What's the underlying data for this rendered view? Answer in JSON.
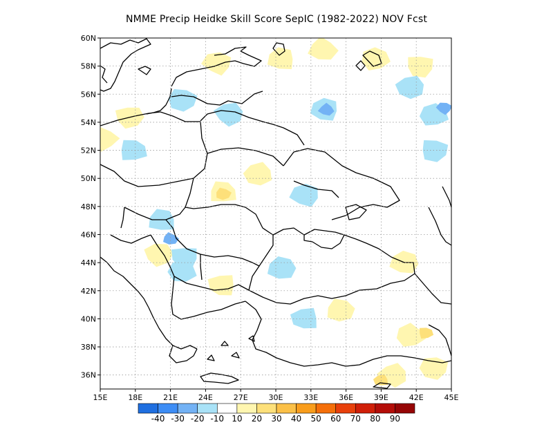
{
  "title": "NMME Precip Heidke Skill Score SepIC (1982-2022) NOV Fcst",
  "map": {
    "lat_labels": [
      "60N",
      "58N",
      "56N",
      "54N",
      "52N",
      "50N",
      "48N",
      "46N",
      "44N",
      "42N",
      "40N",
      "38N",
      "36N"
    ],
    "lat_values": [
      60,
      58,
      56,
      54,
      52,
      50,
      48,
      46,
      44,
      42,
      40,
      38,
      36
    ],
    "lon_labels": [
      "15E",
      "18E",
      "21E",
      "24E",
      "27E",
      "30E",
      "33E",
      "36E",
      "39E",
      "42E",
      "45E"
    ],
    "lon_values": [
      15,
      18,
      21,
      24,
      27,
      30,
      33,
      36,
      39,
      42,
      45
    ],
    "lon_range": [
      15,
      45
    ],
    "lat_range": [
      35,
      60
    ],
    "grid": "dotted"
  },
  "colorbar": {
    "labels": [
      "-40",
      "-30",
      "-20",
      "-10",
      "10",
      "20",
      "30",
      "40",
      "50",
      "60",
      "70",
      "80",
      "90"
    ],
    "colors": [
      "#1f6fe0",
      "#3d8df5",
      "#73b2f5",
      "#a9e2f7",
      "#ffffff",
      "#fff6b0",
      "#fde07a",
      "#fbc047",
      "#f99d1c",
      "#f56f0a",
      "#e8400b",
      "#d01f08",
      "#b40d08",
      "#960505"
    ]
  },
  "palette": {
    "blue_dark": "#1f6fe0",
    "blue": "#3d8df5",
    "blue_mid": "#73b2f5",
    "blue_light": "#a9e2f7",
    "yellow_light": "#fff6b0",
    "yellow": "#fde07a",
    "orange_light": "#fbc047"
  },
  "anomalies": [
    {
      "lon": 30.5,
      "lat": 58.5,
      "level": "yellow_light"
    },
    {
      "lon": 34.0,
      "lat": 59.2,
      "level": "yellow_light"
    },
    {
      "lon": 38.5,
      "lat": 58.5,
      "level": "yellow_light"
    },
    {
      "lon": 42.3,
      "lat": 58.0,
      "level": "yellow_light"
    },
    {
      "lon": 25.0,
      "lat": 58.2,
      "level": "yellow_light"
    },
    {
      "lon": 28.5,
      "lat": 50.3,
      "level": "yellow_light"
    },
    {
      "lon": 25.5,
      "lat": 49.0,
      "level": "yellow_light"
    },
    {
      "lon": 25.5,
      "lat": 48.9,
      "level": "yellow"
    },
    {
      "lon": 20.0,
      "lat": 44.6,
      "level": "yellow_light"
    },
    {
      "lon": 25.4,
      "lat": 42.4,
      "level": "yellow_light"
    },
    {
      "lon": 41.0,
      "lat": 44.0,
      "level": "yellow_light"
    },
    {
      "lon": 41.5,
      "lat": 38.8,
      "level": "yellow_light"
    },
    {
      "lon": 42.8,
      "lat": 39.0,
      "level": "yellow"
    },
    {
      "lon": 43.5,
      "lat": 36.5,
      "level": "yellow_light"
    },
    {
      "lon": 40.0,
      "lat": 36.0,
      "level": "yellow_light"
    },
    {
      "lon": 39.0,
      "lat": 35.6,
      "level": "yellow"
    },
    {
      "lon": 35.5,
      "lat": 40.6,
      "level": "yellow_light"
    },
    {
      "lon": 15.3,
      "lat": 52.8,
      "level": "yellow_light"
    },
    {
      "lon": 17.5,
      "lat": 54.4,
      "level": "yellow_light"
    },
    {
      "lon": 34.2,
      "lat": 54.9,
      "level": "blue_light"
    },
    {
      "lon": 34.3,
      "lat": 54.9,
      "level": "blue_mid"
    },
    {
      "lon": 43.5,
      "lat": 54.5,
      "level": "blue_light"
    },
    {
      "lon": 43.5,
      "lat": 52.0,
      "level": "blue_light"
    },
    {
      "lon": 44.4,
      "lat": 55.0,
      "level": "blue_mid"
    },
    {
      "lon": 41.5,
      "lat": 56.5,
      "level": "blue_light"
    },
    {
      "lon": 20.3,
      "lat": 47.0,
      "level": "blue_light"
    },
    {
      "lon": 21.0,
      "lat": 45.7,
      "level": "blue_mid"
    },
    {
      "lon": 22.0,
      "lat": 44.3,
      "level": "blue_mid"
    },
    {
      "lon": 22.2,
      "lat": 44.4,
      "level": "blue_light"
    },
    {
      "lon": 32.5,
      "lat": 48.8,
      "level": "blue_light"
    },
    {
      "lon": 22.0,
      "lat": 43.4,
      "level": "blue_light"
    },
    {
      "lon": 17.8,
      "lat": 52.0,
      "level": "blue_light"
    },
    {
      "lon": 22.0,
      "lat": 55.6,
      "level": "blue_light"
    },
    {
      "lon": 26.0,
      "lat": 54.6,
      "level": "blue_light"
    },
    {
      "lon": 32.5,
      "lat": 40.0,
      "level": "blue_light"
    },
    {
      "lon": 30.5,
      "lat": 43.6,
      "level": "blue_light"
    }
  ]
}
